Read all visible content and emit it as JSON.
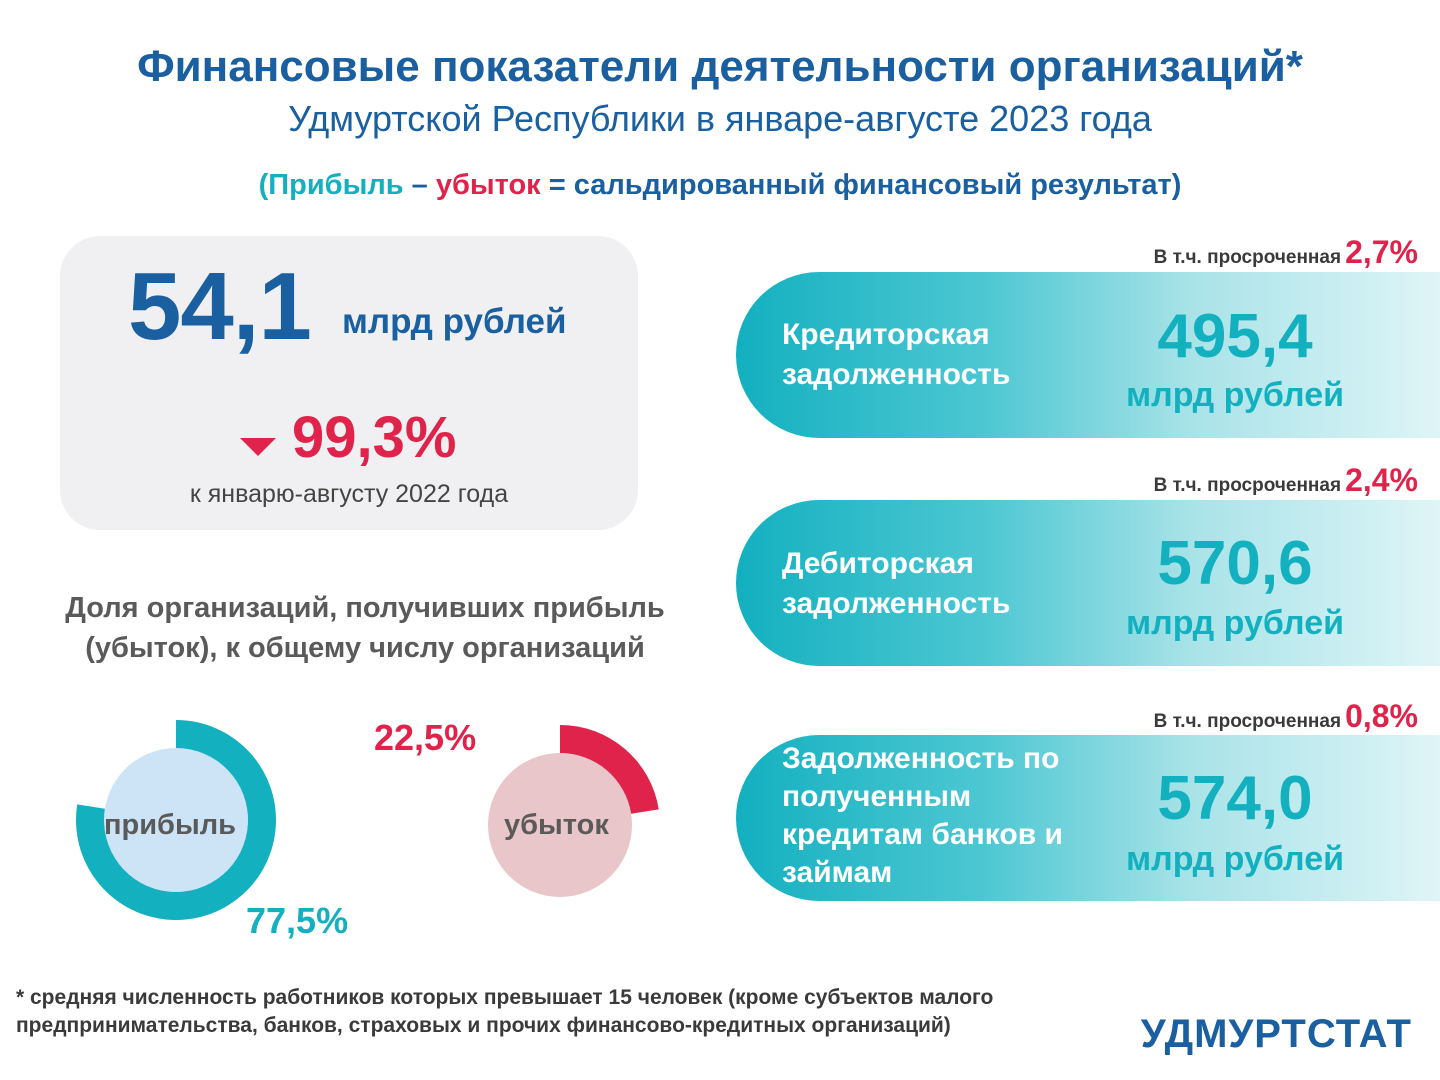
{
  "header": {
    "title": "Финансовые показатели деятельности организаций*",
    "subtitle": "Удмуртской Республики в январе-августе 2023 года",
    "formula": {
      "open": "(",
      "profit": "Прибыль",
      "minus": " – ",
      "loss": "убыток",
      "equals": " = сальдированный финансовый результат)"
    }
  },
  "result": {
    "value": "54,1",
    "unit": "млрд рублей",
    "change": "99,3%",
    "change_direction": "down",
    "comparison": "к январю-августу 2022 года"
  },
  "share": {
    "title": "Доля организаций, получивших прибыль (убыток), к общему числу организаций",
    "profit": {
      "label": "прибыль",
      "pct_text": "77,5%",
      "pct": 77.5
    },
    "loss": {
      "label": "убыток",
      "pct_text": "22,5%",
      "pct": 22.5
    }
  },
  "debts": [
    {
      "label": "Кредиторская задолженность",
      "value": "495,4",
      "unit": "млрд рублей",
      "overdue_text": "В т.ч. просроченная",
      "overdue_pct": "2,7%"
    },
    {
      "label": "Дебиторская задолженность",
      "value": "570,6",
      "unit": "млрд рублей",
      "overdue_text": "В т.ч. просроченная",
      "overdue_pct": "2,4%"
    },
    {
      "label": "Задолженность по полученным кредитам банков и займам",
      "value": "574,0",
      "unit": "млрд рублей",
      "overdue_text": "В т.ч. просроченная",
      "overdue_pct": "0,8%"
    }
  ],
  "footnote": "* средняя численность работников которых превышает 15 человек (кроме субъектов малого предпринимательства, банков, страховых и прочих финансово-кредитных организаций)",
  "brand": "УДМУРТСТАТ",
  "colors": {
    "primary": "#1a5fa0",
    "teal": "#13b0c0",
    "red": "#e0234a",
    "profit_fill": "#cde3f6",
    "loss_fill": "#e9c6c9"
  }
}
